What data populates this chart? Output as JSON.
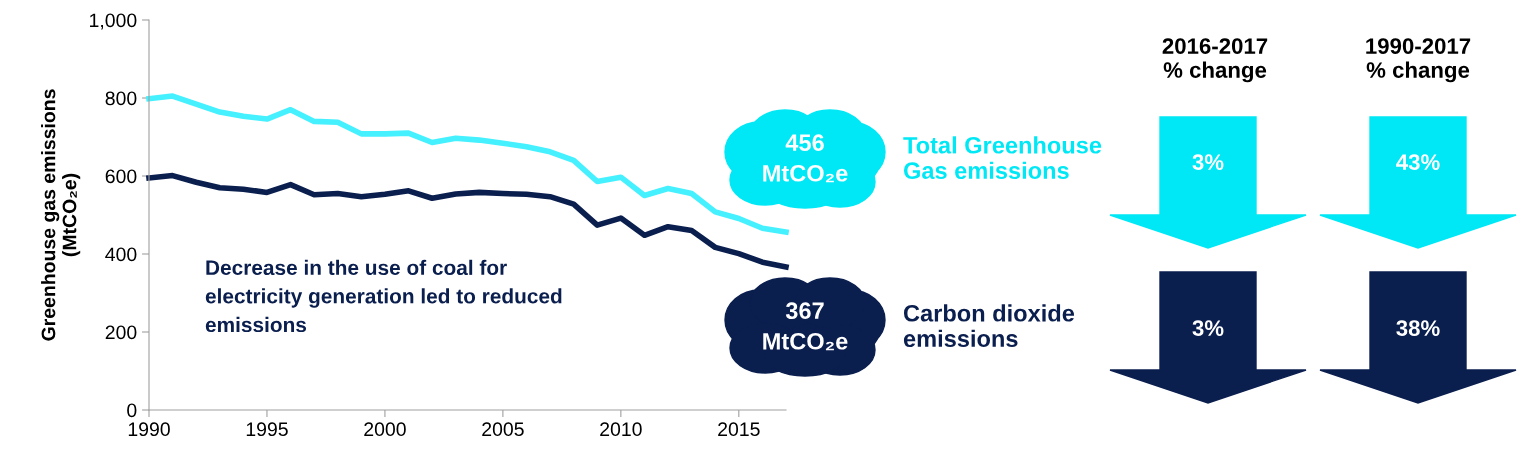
{
  "chart_data": {
    "type": "line",
    "ylabel": "Greenhouse gas emissions\n(MtCO₂e)",
    "x": [
      1990,
      1991,
      1992,
      1993,
      1994,
      1995,
      1996,
      1997,
      1998,
      1999,
      2000,
      2001,
      2002,
      2003,
      2004,
      2005,
      2006,
      2007,
      2008,
      2009,
      2010,
      2011,
      2012,
      2013,
      2014,
      2015,
      2016,
      2017
    ],
    "series": [
      {
        "name": "Total Greenhouse\nGas emissions",
        "color": "#45f0ff",
        "values": [
          798,
          805,
          784,
          764,
          753,
          746,
          770,
          740,
          738,
          708,
          708,
          710,
          686,
          697,
          692,
          684,
          675,
          662,
          640,
          586,
          597,
          550,
          568,
          555,
          508,
          491,
          466,
          456
        ],
        "value_labels": [
          null,
          null,
          null,
          null,
          null,
          null,
          null,
          null,
          null,
          null,
          null,
          null,
          null,
          null,
          null,
          null,
          null,
          null,
          null,
          null,
          null,
          null,
          null,
          null,
          null,
          null,
          null,
          "456\nMtCO₂e"
        ]
      },
      {
        "name": "Carbon dioxide\nemissions",
        "color": "#0b1f4f",
        "values": [
          595,
          601,
          584,
          570,
          566,
          558,
          578,
          552,
          555,
          547,
          553,
          562,
          543,
          554,
          558,
          555,
          553,
          547,
          528,
          474,
          492,
          448,
          470,
          460,
          417,
          401,
          379,
          367
        ],
        "value_labels": [
          null,
          null,
          null,
          null,
          null,
          null,
          null,
          null,
          null,
          null,
          null,
          null,
          null,
          null,
          null,
          null,
          null,
          null,
          null,
          null,
          null,
          null,
          null,
          null,
          null,
          null,
          null,
          "367\nMtCO₂e"
        ]
      }
    ],
    "xlim": [
      1990,
      2017
    ],
    "xticks": [
      1990,
      1995,
      2000,
      2005,
      2010,
      2015
    ],
    "ylim": [
      0,
      1000
    ],
    "yticks": [
      0,
      200,
      400,
      600,
      800,
      {
        "value": 1000,
        "label": "1,000"
      }
    ],
    "grid": false,
    "legend": false,
    "marker": "none",
    "line_style": "solid",
    "annotations": [
      "Decrease in the use of coal for\nelectricity generation led to reduced\nemissions",
      "2016-2017\n% change",
      "1990-2017\n% change",
      "3%",
      "43%",
      "3%",
      "38%"
    ]
  }
}
